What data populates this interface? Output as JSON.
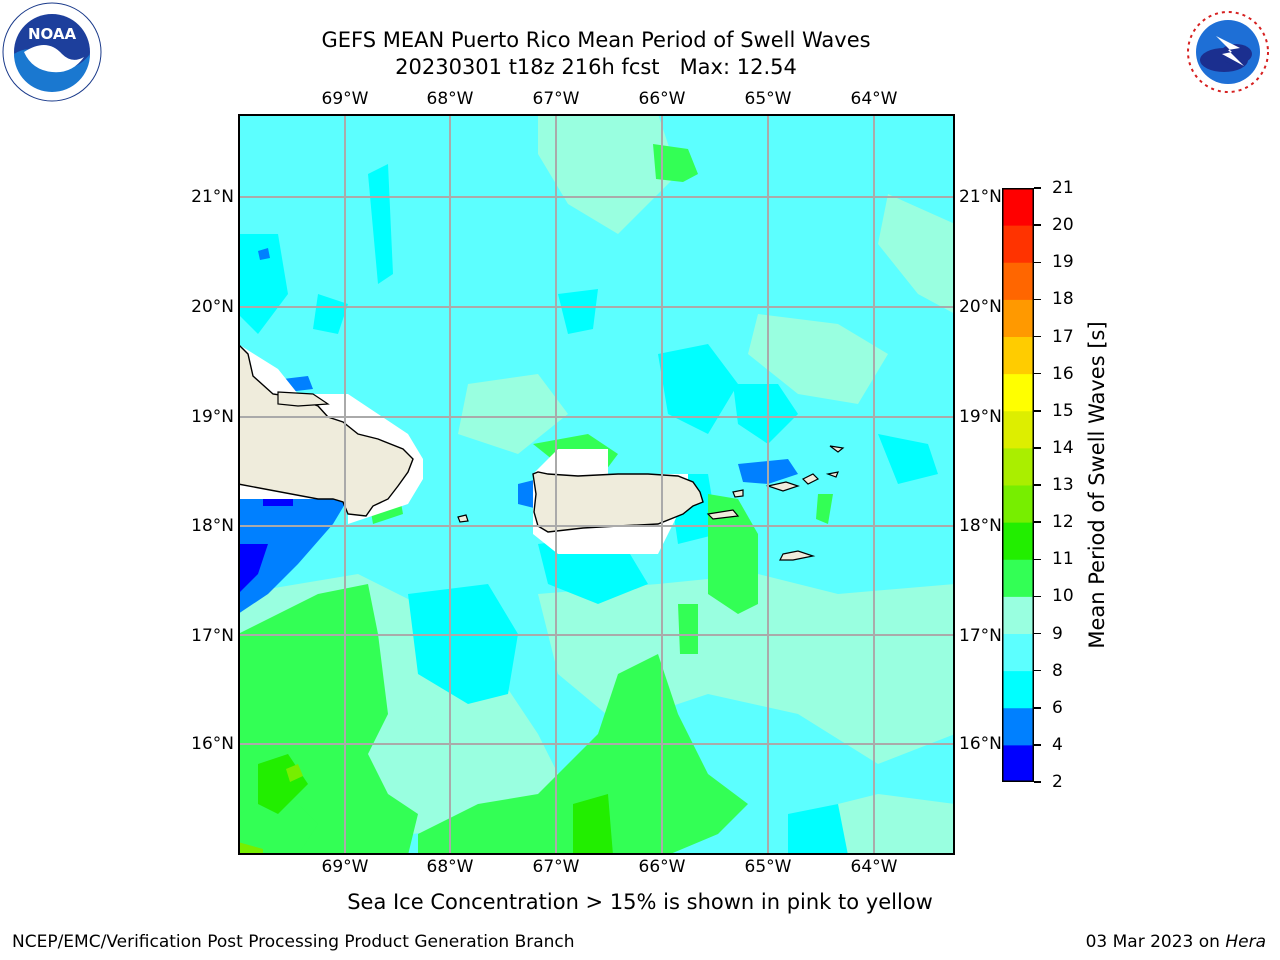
{
  "header": {
    "title_line1": "GEFS MEAN Puerto Rico Mean Period of Swell Waves",
    "title_line2": "20230301 t18z 216h fcst   Max: 12.54"
  },
  "logos": {
    "left": {
      "icon": "noaa-logo-icon",
      "text": "NOAA"
    },
    "right": {
      "icon": "nws-logo-icon",
      "text": "NATIONAL WEATHER SERVICE"
    }
  },
  "map": {
    "longitude_labels": [
      "69°W",
      "68°W",
      "67°W",
      "66°W",
      "65°W",
      "64°W"
    ],
    "latitude_labels": [
      "21°N",
      "20°N",
      "19°N",
      "18°N",
      "17°N",
      "16°N"
    ],
    "land_color": "#efecdc",
    "masked_color": "#ffffff",
    "field_background_color": "#5cffff"
  },
  "colorbar": {
    "label": "Mean Period of Swell Waves [s]",
    "ticks": [
      "2",
      "4",
      "6",
      "8",
      "9",
      "10",
      "11",
      "12",
      "13",
      "14",
      "15",
      "16",
      "17",
      "18",
      "19",
      "20",
      "21"
    ],
    "levels": [
      {
        "from": 2,
        "to": 4,
        "color": "#0000ff"
      },
      {
        "from": 4,
        "to": 6,
        "color": "#0080ff"
      },
      {
        "from": 6,
        "to": 8,
        "color": "#00ffff"
      },
      {
        "from": 8,
        "to": 9,
        "color": "#5cffff"
      },
      {
        "from": 9,
        "to": 10,
        "color": "#99ffe0"
      },
      {
        "from": 10,
        "to": 11,
        "color": "#33ff55"
      },
      {
        "from": 11,
        "to": 12,
        "color": "#22ee00"
      },
      {
        "from": 12,
        "to": 13,
        "color": "#77ee00"
      },
      {
        "from": 13,
        "to": 14,
        "color": "#aaee00"
      },
      {
        "from": 14,
        "to": 15,
        "color": "#ddee00"
      },
      {
        "from": 15,
        "to": 16,
        "color": "#ffff00"
      },
      {
        "from": 16,
        "to": 17,
        "color": "#ffcc00"
      },
      {
        "from": 17,
        "to": 18,
        "color": "#ff9900"
      },
      {
        "from": 18,
        "to": 19,
        "color": "#ff6600"
      },
      {
        "from": 19,
        "to": 20,
        "color": "#ff3300"
      },
      {
        "from": 20,
        "to": 21,
        "color": "#ff0000"
      }
    ]
  },
  "notes": {
    "ice": "Sea Ice Concentration > 15% is shown in pink to yellow"
  },
  "footer": {
    "left": "NCEP/EMC/Verification Post Processing Product Generation Branch",
    "date": "03 Mar 2023 on ",
    "host": "Hera"
  }
}
